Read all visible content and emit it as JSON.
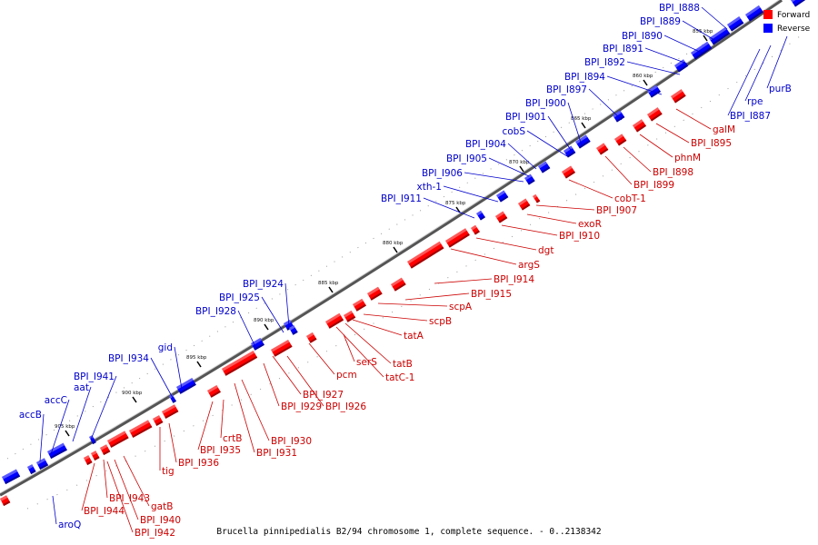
{
  "caption": "Brucella pinnipedialis B2/94 chromosome 1, complete sequence. - 0..2138342",
  "legend": [
    {
      "label": "Forward",
      "color": "#ff0000"
    },
    {
      "label": "Reverse",
      "color": "#0000ff"
    }
  ],
  "ticks": [
    "855 kbp",
    "860 kbp",
    "865 kbp",
    "870 kbp",
    "875 kbp",
    "880 kbp",
    "885 kbp",
    "890 kbp",
    "895 kbp",
    "900 kbp",
    "905 kbp"
  ],
  "reverse_genes": [
    "BPI_I888",
    "BPI_I889",
    "BPI_I890",
    "BPI_I891",
    "BPI_I892",
    "BPI_I894",
    "BPI_I897",
    "BPI_I900",
    "BPI_I901",
    "cobS",
    "BPI_I904",
    "BPI_I905",
    "BPI_I906",
    "xth-1",
    "BPI_I911",
    "BPI_I924",
    "BPI_I925",
    "BPI_I928",
    "gid",
    "BPI_I934",
    "BPI_I941",
    "aat",
    "accC",
    "accB",
    "aroQ",
    "purB",
    "rpe",
    "BPI_I887"
  ],
  "forward_genes": [
    "galM",
    "BPI_I895",
    "phnM",
    "BPI_I898",
    "BPI_I899",
    "cobT-1",
    "BPI_I907",
    "exoR",
    "BPI_I910",
    "dgt",
    "argS",
    "BPI_I914",
    "BPI_I915",
    "scpA",
    "scpB",
    "tatA",
    "pcm",
    "serS",
    "tatB",
    "tatC-1",
    "BPI_I927",
    "BPI_I929",
    "BPI_I926",
    "crtB",
    "BPI_I935",
    "BPI_I930",
    "BPI_I931",
    "tig",
    "BPI_I936",
    "gatB",
    "BPI_I943",
    "BPI_I944",
    "BPI_I940",
    "BPI_I942"
  ]
}
